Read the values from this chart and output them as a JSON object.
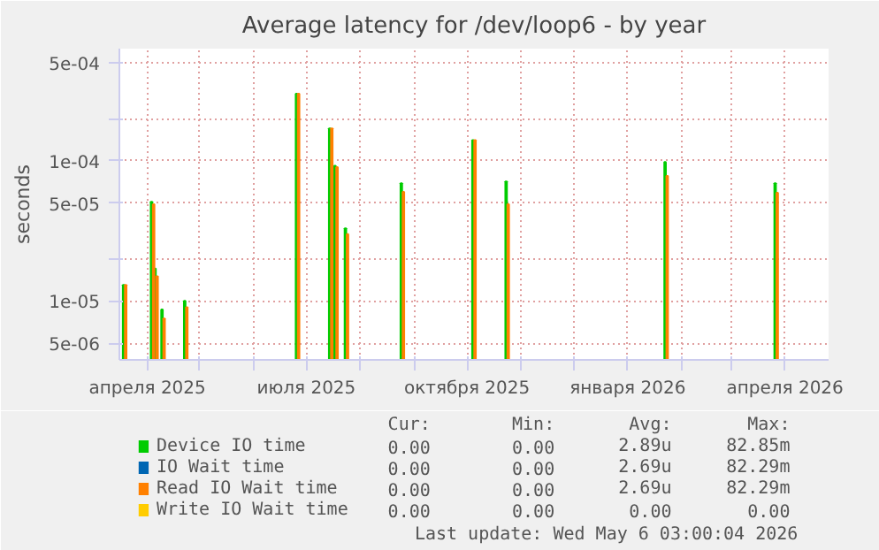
{
  "chart_data": {
    "type": "bar",
    "title": "Average latency for /dev/loop6 - by year",
    "ylabel": "seconds",
    "x": [
      "2025-03-19",
      "2025-04-04",
      "2025-04-06",
      "2025-04-10",
      "2025-04-23",
      "2025-06-26",
      "2025-07-15",
      "2025-07-18",
      "2025-07-24",
      "2025-08-25",
      "2025-10-05",
      "2025-10-24",
      "2026-01-23",
      "2026-03-27"
    ],
    "series": [
      {
        "name": "Device IO time",
        "color": "#00cc00",
        "values": [
          1.3e-05,
          5.1e-05,
          1.7e-05,
          8.7e-06,
          1e-05,
          0.0003,
          0.00017,
          9.2e-05,
          3.3e-05,
          6.9e-05,
          0.00014,
          7.1e-05,
          9.8e-05,
          6.9e-05
        ]
      },
      {
        "name": "IO Wait time",
        "color": "#0066b3",
        "values": [
          null,
          null,
          null,
          null,
          null,
          null,
          null,
          null,
          null,
          null,
          null,
          null,
          null,
          null
        ]
      },
      {
        "name": "Read IO Wait time",
        "color": "#ff8000",
        "values": [
          1.3e-05,
          4.9e-05,
          1.5e-05,
          7.5e-06,
          9e-06,
          0.0003,
          0.00017,
          9e-05,
          3e-05,
          6e-05,
          0.00014,
          4.9e-05,
          7.8e-05,
          5.9e-05
        ]
      },
      {
        "name": "Write IO Wait time",
        "color": "#ffcc00",
        "values": [
          null,
          null,
          null,
          null,
          null,
          null,
          null,
          null,
          null,
          null,
          null,
          null,
          null,
          null
        ]
      }
    ],
    "log": true,
    "grid": true,
    "legend": "bottom",
    "xlim": [
      "2025-03-16",
      "2026-04-26"
    ],
    "xticks": [
      {
        "value": "2025-04-01",
        "label": "апреля 2025"
      },
      {
        "value": "2025-05-01",
        "label": null
      },
      {
        "value": "2025-06-01",
        "label": null
      },
      {
        "value": "2025-07-01",
        "label": "июля 2025"
      },
      {
        "value": "2025-08-01",
        "label": null
      },
      {
        "value": "2025-09-01",
        "label": null
      },
      {
        "value": "2025-10-01",
        "label": "октября 2025"
      },
      {
        "value": "2025-11-01",
        "label": null
      },
      {
        "value": "2025-12-01",
        "label": null
      },
      {
        "value": "2026-01-01",
        "label": "января 2026"
      },
      {
        "value": "2026-02-01",
        "label": null
      },
      {
        "value": "2026-03-01",
        "label": null
      },
      {
        "value": "2026-04-01",
        "label": "апреля 2026"
      }
    ],
    "ylim": [
      3.8e-06,
      0.00063
    ],
    "yticks": [
      {
        "value": 5e-06,
        "label": "5e-06"
      },
      {
        "value": 1e-05,
        "label": "1e-05"
      },
      {
        "value": 2e-05,
        "label": null
      },
      {
        "value": 5e-05,
        "label": "5e-05"
      },
      {
        "value": 0.0001,
        "label": "1e-04"
      },
      {
        "value": 0.0002,
        "label": null
      },
      {
        "value": 0.0005,
        "label": "5e-04"
      }
    ],
    "annotations": [
      "Cur:",
      "Min:",
      "Avg:",
      "Max:",
      "0.00",
      "0.00",
      "2.89u",
      "82.85m",
      "0.00",
      "0.00",
      "2.69u",
      "82.29m",
      "0.00",
      "0.00",
      "2.69u",
      "82.29m",
      "0.00",
      "0.00",
      "0.00",
      "0.00",
      "Last update: Wed May  6 03:00:04 2026"
    ]
  }
}
